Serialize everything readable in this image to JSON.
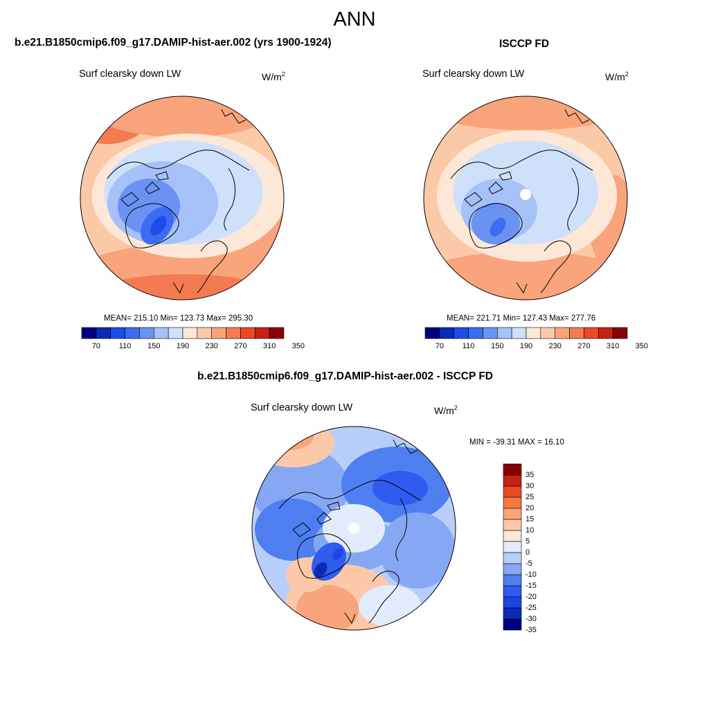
{
  "figure": {
    "title": "ANN"
  },
  "panels": [
    {
      "title": "b.e21.B1850cmip6.f09_g17.DAMIP-hist-aer.002 (yrs 1900-1924)",
      "variable": "Surf clearsky down LW",
      "units_base": "W/m",
      "units_exp": "2",
      "stats": "MEAN= 215.10  Min= 123.73  Max= 295.30"
    },
    {
      "title": "ISCCP FD",
      "variable": "Surf clearsky down LW",
      "units_base": "W/m",
      "units_exp": "2",
      "stats": "MEAN= 221.71  Min= 127.43  Max= 277.76"
    },
    {
      "title": "b.e21.B1850cmip6.f09_g17.DAMIP-hist-aer.002 - ISCCP FD",
      "variable": "Surf clearsky down LW",
      "units_base": "W/m",
      "units_exp": "2",
      "stats": "MIN = -39.31 MAX =  16.10"
    }
  ],
  "colorbar_abs": {
    "colors": [
      "#00007f",
      "#0a2bb6",
      "#1f4ce6",
      "#3b6cf2",
      "#6a92f3",
      "#a5c1f7",
      "#cfe0fa",
      "#fde8d8",
      "#fcc9a8",
      "#f9a47b",
      "#f47a52",
      "#ea4a23",
      "#c52313",
      "#8b0000"
    ],
    "tick_labels": [
      "70",
      "110",
      "150",
      "190",
      "230",
      "270",
      "310",
      "350"
    ]
  },
  "colorbar_diff": {
    "colors": [
      "#00007f",
      "#0a2bb6",
      "#1b45e3",
      "#2f5cef",
      "#4f7ef1",
      "#86a8f4",
      "#b7cff8",
      "#e2ecfc",
      "#fde8d8",
      "#fcc9a8",
      "#f9a47b",
      "#f4783f",
      "#ea4a23",
      "#c52313",
      "#8b0000"
    ],
    "tick_labels": [
      "35",
      "30",
      "25",
      "20",
      "15",
      "10",
      "5",
      "0",
      "-5",
      "-10",
      "-15",
      "-20",
      "-25",
      "-30",
      "-35"
    ]
  },
  "chart_data": [
    {
      "type": "heatmap",
      "projection": "north polar stereographic",
      "title": "b.e21.B1850cmip6.f09_g17.DAMIP-hist-aer.002 (yrs 1900-1924)",
      "variable": "Surf clearsky down LW",
      "units": "W/m2",
      "mean": 215.1,
      "min": 123.73,
      "max": 295.3,
      "levels": [
        70,
        90,
        110,
        130,
        150,
        170,
        190,
        210,
        230,
        250,
        270,
        290,
        310,
        330,
        350
      ]
    },
    {
      "type": "heatmap",
      "projection": "north polar stereographic",
      "title": "ISCCP FD",
      "variable": "Surf clearsky down LW",
      "units": "W/m2",
      "mean": 221.71,
      "min": 127.43,
      "max": 277.76,
      "levels": [
        70,
        90,
        110,
        130,
        150,
        170,
        190,
        210,
        230,
        250,
        270,
        290,
        310,
        330,
        350
      ]
    },
    {
      "type": "heatmap",
      "projection": "north polar stereographic",
      "title": "b.e21.B1850cmip6.f09_g17.DAMIP-hist-aer.002 - ISCCP FD",
      "variable": "Surf clearsky down LW",
      "units": "W/m2",
      "min": -39.31,
      "max": 16.1,
      "levels": [
        -35,
        -30,
        -25,
        -20,
        -15,
        -10,
        -5,
        0,
        5,
        10,
        15,
        20,
        25,
        30,
        35
      ]
    }
  ]
}
